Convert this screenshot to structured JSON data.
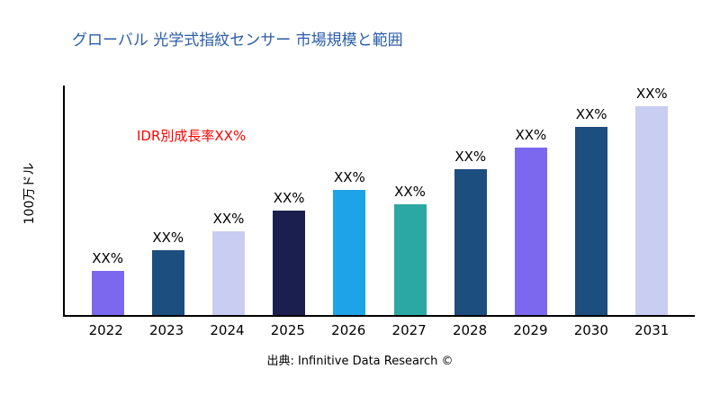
{
  "title": "グローバル 光学式指紋センサー 市場規模と範囲",
  "annotation": {
    "text": "IDR別成長率XX%",
    "color": "#ff0000"
  },
  "ylabel": "100万ドル",
  "source": "出典: Infinitive Data Research ©",
  "chart_data": {
    "type": "bar",
    "title": "グローバル 光学式指紋センサー 市場規模と範囲",
    "xlabel": "",
    "ylabel": "100万ドル",
    "categories": [
      "2022",
      "2023",
      "2024",
      "2025",
      "2026",
      "2027",
      "2028",
      "2029",
      "2030",
      "2031"
    ],
    "values": [
      21,
      31,
      40,
      50,
      60,
      53,
      70,
      80,
      90,
      100
    ],
    "bar_labels": [
      "XX%",
      "XX%",
      "XX%",
      "XX%",
      "XX%",
      "XX%",
      "XX%",
      "XX%",
      "XX%",
      "XX%"
    ],
    "bar_colors": [
      "#7b68ee",
      "#1c4e80",
      "#c9cdf2",
      "#1b1f4e",
      "#1fa3e8",
      "#2ba8a4",
      "#1c4e80",
      "#7b68ee",
      "#1c4e80",
      "#c9cdf2"
    ],
    "ylim": [
      0,
      100
    ],
    "grid": false,
    "legend": false,
    "annotation": "IDR別成長率XX%"
  }
}
